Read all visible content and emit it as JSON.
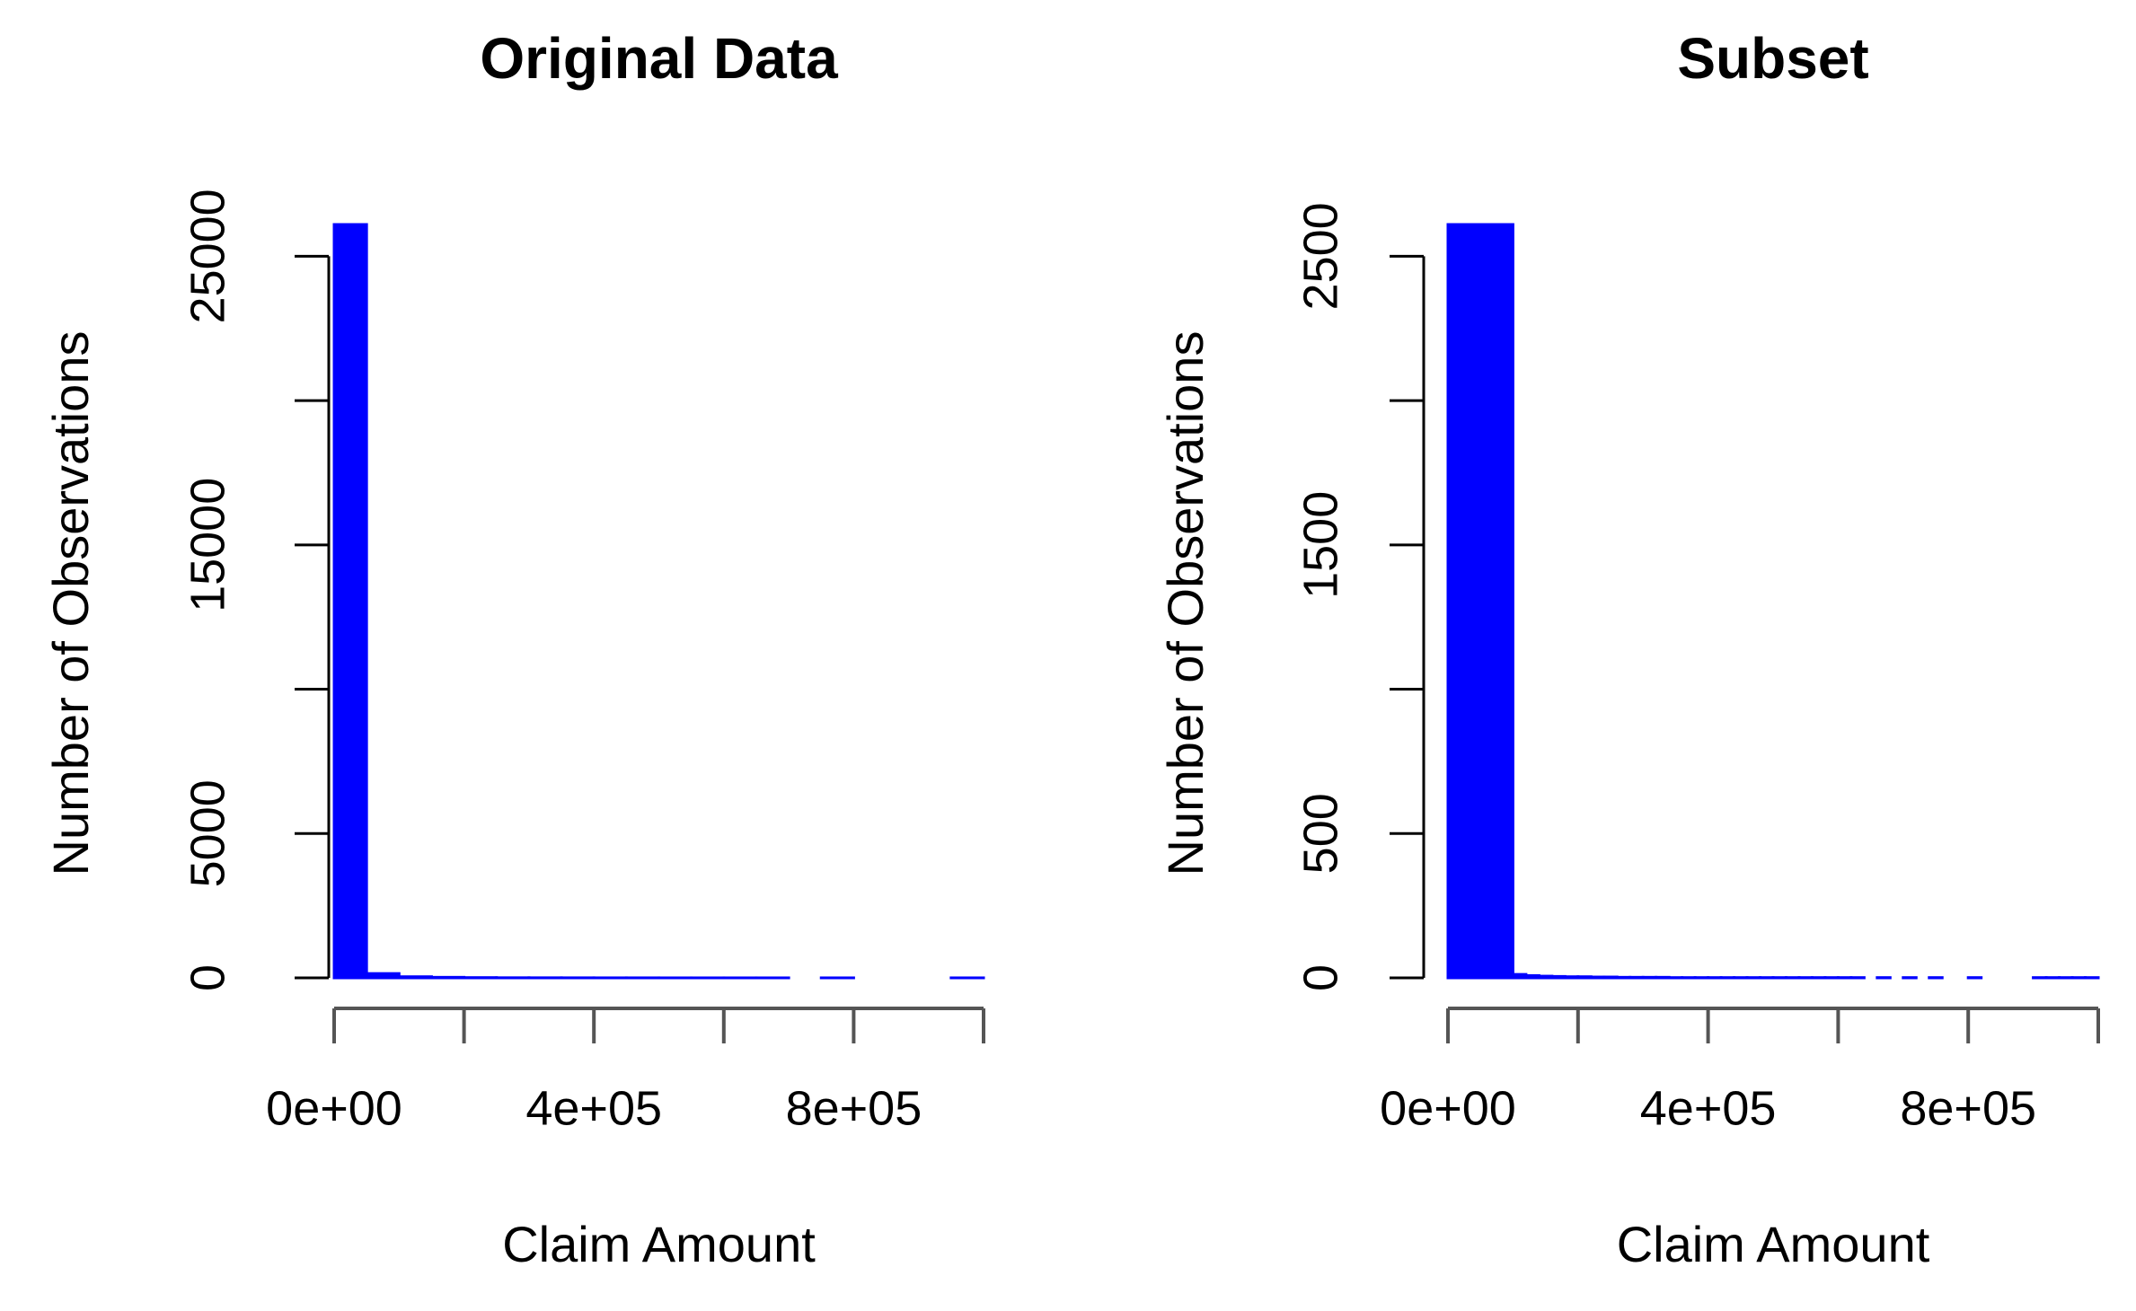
{
  "chart_data": [
    {
      "type": "histogram",
      "title": "Original Data",
      "x_label": "Claim Amount",
      "y_label": "Number of Observations",
      "color": "#0000ff",
      "bins": [
        0,
        50000,
        100000,
        150000,
        200000,
        250000,
        300000,
        350000,
        400000,
        450000,
        500000,
        550000,
        600000,
        650000,
        700000,
        750000,
        800000,
        850000,
        900000,
        950000,
        1000000
      ],
      "values": [
        26100,
        150,
        40,
        20,
        10,
        5,
        4,
        3,
        2,
        2,
        1,
        1,
        1,
        1,
        0,
        1,
        0,
        0,
        0,
        1
      ],
      "xlim": [
        0,
        1000000
      ],
      "xticks": [
        {
          "value": 0,
          "label": "0e+00"
        },
        {
          "value": 200000,
          "label": null
        },
        {
          "value": 400000,
          "label": "4e+05"
        },
        {
          "value": 600000,
          "label": null
        },
        {
          "value": 800000,
          "label": "8e+05"
        },
        {
          "value": 1000000,
          "label": null
        }
      ],
      "ylim": [
        0,
        26100
      ],
      "yticks": [
        0,
        5000,
        {
          "value": 10000,
          "label": null
        },
        15000,
        {
          "value": 20000,
          "label": null
        },
        25000
      ]
    },
    {
      "type": "histogram",
      "title": "Subset",
      "x_label": "Claim Amount",
      "y_label": "Number of Observations",
      "color": "#0000ff",
      "bins": [
        0,
        20000,
        40000,
        60000,
        80000,
        100000,
        120000,
        140000,
        160000,
        180000,
        200000,
        220000,
        240000,
        260000,
        280000,
        300000,
        320000,
        340000,
        360000,
        380000,
        400000,
        420000,
        440000,
        460000,
        480000,
        500000,
        520000,
        540000,
        560000,
        580000,
        600000,
        620000,
        640000,
        660000,
        680000,
        700000,
        720000,
        740000,
        760000,
        780000,
        800000,
        820000,
        840000,
        860000,
        880000,
        900000,
        920000,
        940000,
        960000,
        980000,
        1000000
      ],
      "values": [
        2610,
        2610,
        2610,
        2610,
        2610,
        12,
        8,
        6,
        5,
        4,
        4,
        3,
        3,
        2,
        2,
        2,
        2,
        1,
        1,
        1,
        1,
        1,
        1,
        1,
        1,
        1,
        1,
        1,
        1,
        1,
        1,
        1,
        0,
        1,
        0,
        1,
        0,
        1,
        0,
        0,
        1,
        0,
        0,
        0,
        0,
        1,
        1,
        1,
        1,
        1
      ],
      "xlim": [
        0,
        1000000
      ],
      "xticks": [
        {
          "value": 0,
          "label": "0e+00"
        },
        {
          "value": 200000,
          "label": null
        },
        {
          "value": 400000,
          "label": "4e+05"
        },
        {
          "value": 600000,
          "label": null
        },
        {
          "value": 800000,
          "label": "8e+05"
        },
        {
          "value": 1000000,
          "label": null
        }
      ],
      "ylim": [
        0,
        2610
      ],
      "yticks": [
        0,
        500,
        {
          "value": 1000,
          "label": null
        },
        1500,
        {
          "value": 2000,
          "label": null
        },
        2500
      ]
    }
  ]
}
